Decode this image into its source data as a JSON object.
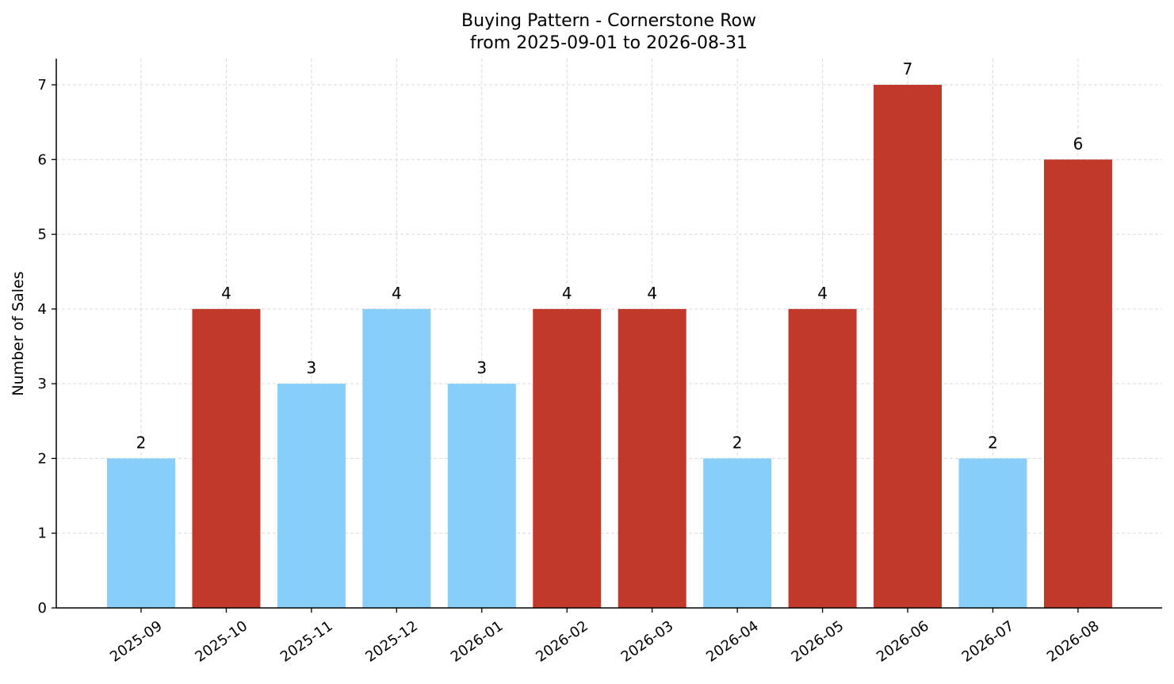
{
  "chart_data": {
    "type": "bar",
    "title": "Buying Pattern - Cornerstone Row",
    "subtitle": "from 2025-09-01 to 2026-08-31",
    "xlabel": "",
    "ylabel": "Number of Sales",
    "ylim": [
      0,
      7.35
    ],
    "yticks": [
      0,
      1,
      2,
      3,
      4,
      5,
      6,
      7
    ],
    "grid": true,
    "categories": [
      "2025-09",
      "2025-10",
      "2025-11",
      "2025-12",
      "2026-01",
      "2026-02",
      "2026-03",
      "2026-04",
      "2026-05",
      "2026-06",
      "2026-07",
      "2026-08"
    ],
    "values": [
      2,
      4,
      3,
      4,
      3,
      4,
      4,
      2,
      4,
      7,
      2,
      6
    ],
    "colors": {
      "low": "#87CEFA",
      "high": "#C0392B",
      "grid": "#d9d9d9",
      "axis": "#000000"
    },
    "value_labels": [
      "2",
      "4",
      "3",
      "4",
      "3",
      "4",
      "4",
      "2",
      "4",
      "7",
      "2",
      "6"
    ],
    "bar_colors": [
      "#87CEFA",
      "#C0392B",
      "#87CEFA",
      "#87CEFA",
      "#87CEFA",
      "#C0392B",
      "#C0392B",
      "#87CEFA",
      "#C0392B",
      "#C0392B",
      "#87CEFA",
      "#C0392B"
    ]
  }
}
